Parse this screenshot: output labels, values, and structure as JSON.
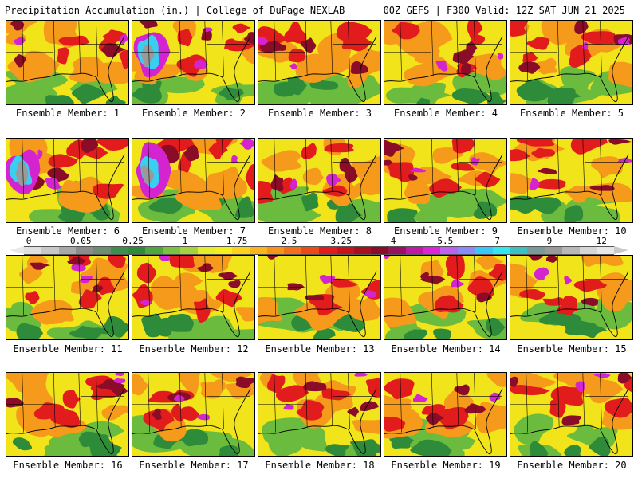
{
  "header": {
    "left": "Precipitation Accumulation (in.) | College of DuPage NEXLAB",
    "right": "00Z GEFS | F300 Valid: 12Z SAT JUN 21 2025"
  },
  "panels": [
    {
      "label": "Ensemble Member: 1"
    },
    {
      "label": "Ensemble Member: 2"
    },
    {
      "label": "Ensemble Member: 3"
    },
    {
      "label": "Ensemble Member: 4"
    },
    {
      "label": "Ensemble Member: 5"
    },
    {
      "label": "Ensemble Member: 6"
    },
    {
      "label": "Ensemble Member: 7"
    },
    {
      "label": "Ensemble Member: 8"
    },
    {
      "label": "Ensemble Member: 9"
    },
    {
      "label": "Ensemble Member: 10"
    },
    {
      "label": "Ensemble Member: 11"
    },
    {
      "label": "Ensemble Member: 12"
    },
    {
      "label": "Ensemble Member: 13"
    },
    {
      "label": "Ensemble Member: 14"
    },
    {
      "label": "Ensemble Member: 15"
    },
    {
      "label": "Ensemble Member: 16"
    },
    {
      "label": "Ensemble Member: 17"
    },
    {
      "label": "Ensemble Member: 18"
    },
    {
      "label": "Ensemble Member: 19"
    },
    {
      "label": "Ensemble Member: 20"
    }
  ],
  "colorbar": {
    "ticks": [
      {
        "label": "0",
        "index": 0
      },
      {
        "label": "0.05",
        "index": 3
      },
      {
        "label": "0.25",
        "index": 6
      },
      {
        "label": "1",
        "index": 9
      },
      {
        "label": "1.75",
        "index": 12
      },
      {
        "label": "2.5",
        "index": 15
      },
      {
        "label": "3.25",
        "index": 18
      },
      {
        "label": "4",
        "index": 21
      },
      {
        "label": "5.5",
        "index": 24
      },
      {
        "label": "7",
        "index": 27
      },
      {
        "label": "9",
        "index": 30
      },
      {
        "label": "12",
        "index": 33
      }
    ],
    "colors": [
      "#e0e0e0",
      "#c8c8c8",
      "#a8a8a8",
      "#8c8c8c",
      "#6e8f6e",
      "#3f8e4a",
      "#2e8b3a",
      "#4fa83c",
      "#7cc242",
      "#a8d23c",
      "#e6ee2a",
      "#f6f018",
      "#fcd21a",
      "#fbb41a",
      "#f8921a",
      "#f46f19",
      "#ee4a18",
      "#e21c1c",
      "#c8141c",
      "#a8101e",
      "#8a0c28",
      "#9c1060",
      "#c01aa0",
      "#e022d8",
      "#c060f0",
      "#8a8af8",
      "#38c8f8",
      "#30e8f0",
      "#3cc0c0",
      "#7a9a9a",
      "#9a9a9a",
      "#b8b8b8",
      "#d6d6d6",
      "#e8e8e8"
    ]
  },
  "map_colors": {
    "base": "#f2e41a",
    "green_dark": "#2e8b3a",
    "green_light": "#6bbb3e",
    "orange": "#f59a1a",
    "red": "#e21c1c",
    "darkred": "#8a0c28",
    "magenta": "#d424d0",
    "cyan": "#38d0f0",
    "gray": "#9a9a9a"
  }
}
